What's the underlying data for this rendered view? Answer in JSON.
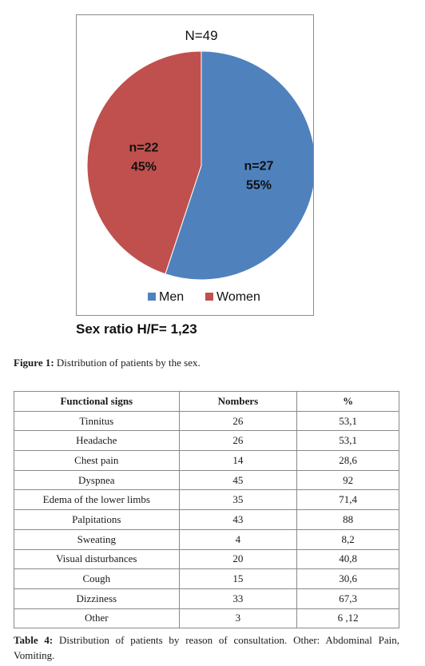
{
  "chart_data": {
    "type": "pie",
    "title": "N=49",
    "slices": [
      {
        "name": "Men",
        "value": 27,
        "label_n": "n=27",
        "label_pct": "55%",
        "color": "#4f81bd"
      },
      {
        "name": "Women",
        "value": 22,
        "label_n": "n=22",
        "label_pct": "45%",
        "color": "#c0504d"
      }
    ],
    "legend_placement": "bottom"
  },
  "figure": {
    "sex_ratio": "Sex ratio  H/F= 1,23",
    "caption_label": "Figure 1:",
    "caption_text": " Distribution of patients by the sex."
  },
  "table": {
    "headers": [
      "Functional signs",
      "Nombers",
      "%"
    ],
    "rows": [
      [
        "Tinnitus",
        "26",
        "53,1"
      ],
      [
        "Headache",
        "26",
        "53,1"
      ],
      [
        "Chest pain",
        "14",
        "28,6"
      ],
      [
        "Dyspnea",
        "45",
        "92"
      ],
      [
        "Edema of the lower limbs",
        "35",
        "71,4"
      ],
      [
        "Palpitations",
        "43",
        "88"
      ],
      [
        "Sweating",
        "4",
        "8,2"
      ],
      [
        "Visual disturbances",
        "20",
        "40,8"
      ],
      [
        "Cough",
        "15",
        "30,6"
      ],
      [
        "Dizziness",
        "33",
        "67,3"
      ],
      [
        "Other",
        "3",
        "6 ,12"
      ]
    ],
    "caption_label": "Table 4:",
    "caption_text": " Distribution of patients by reason of consultation. Other: Abdominal Pain, Vomiting."
  }
}
